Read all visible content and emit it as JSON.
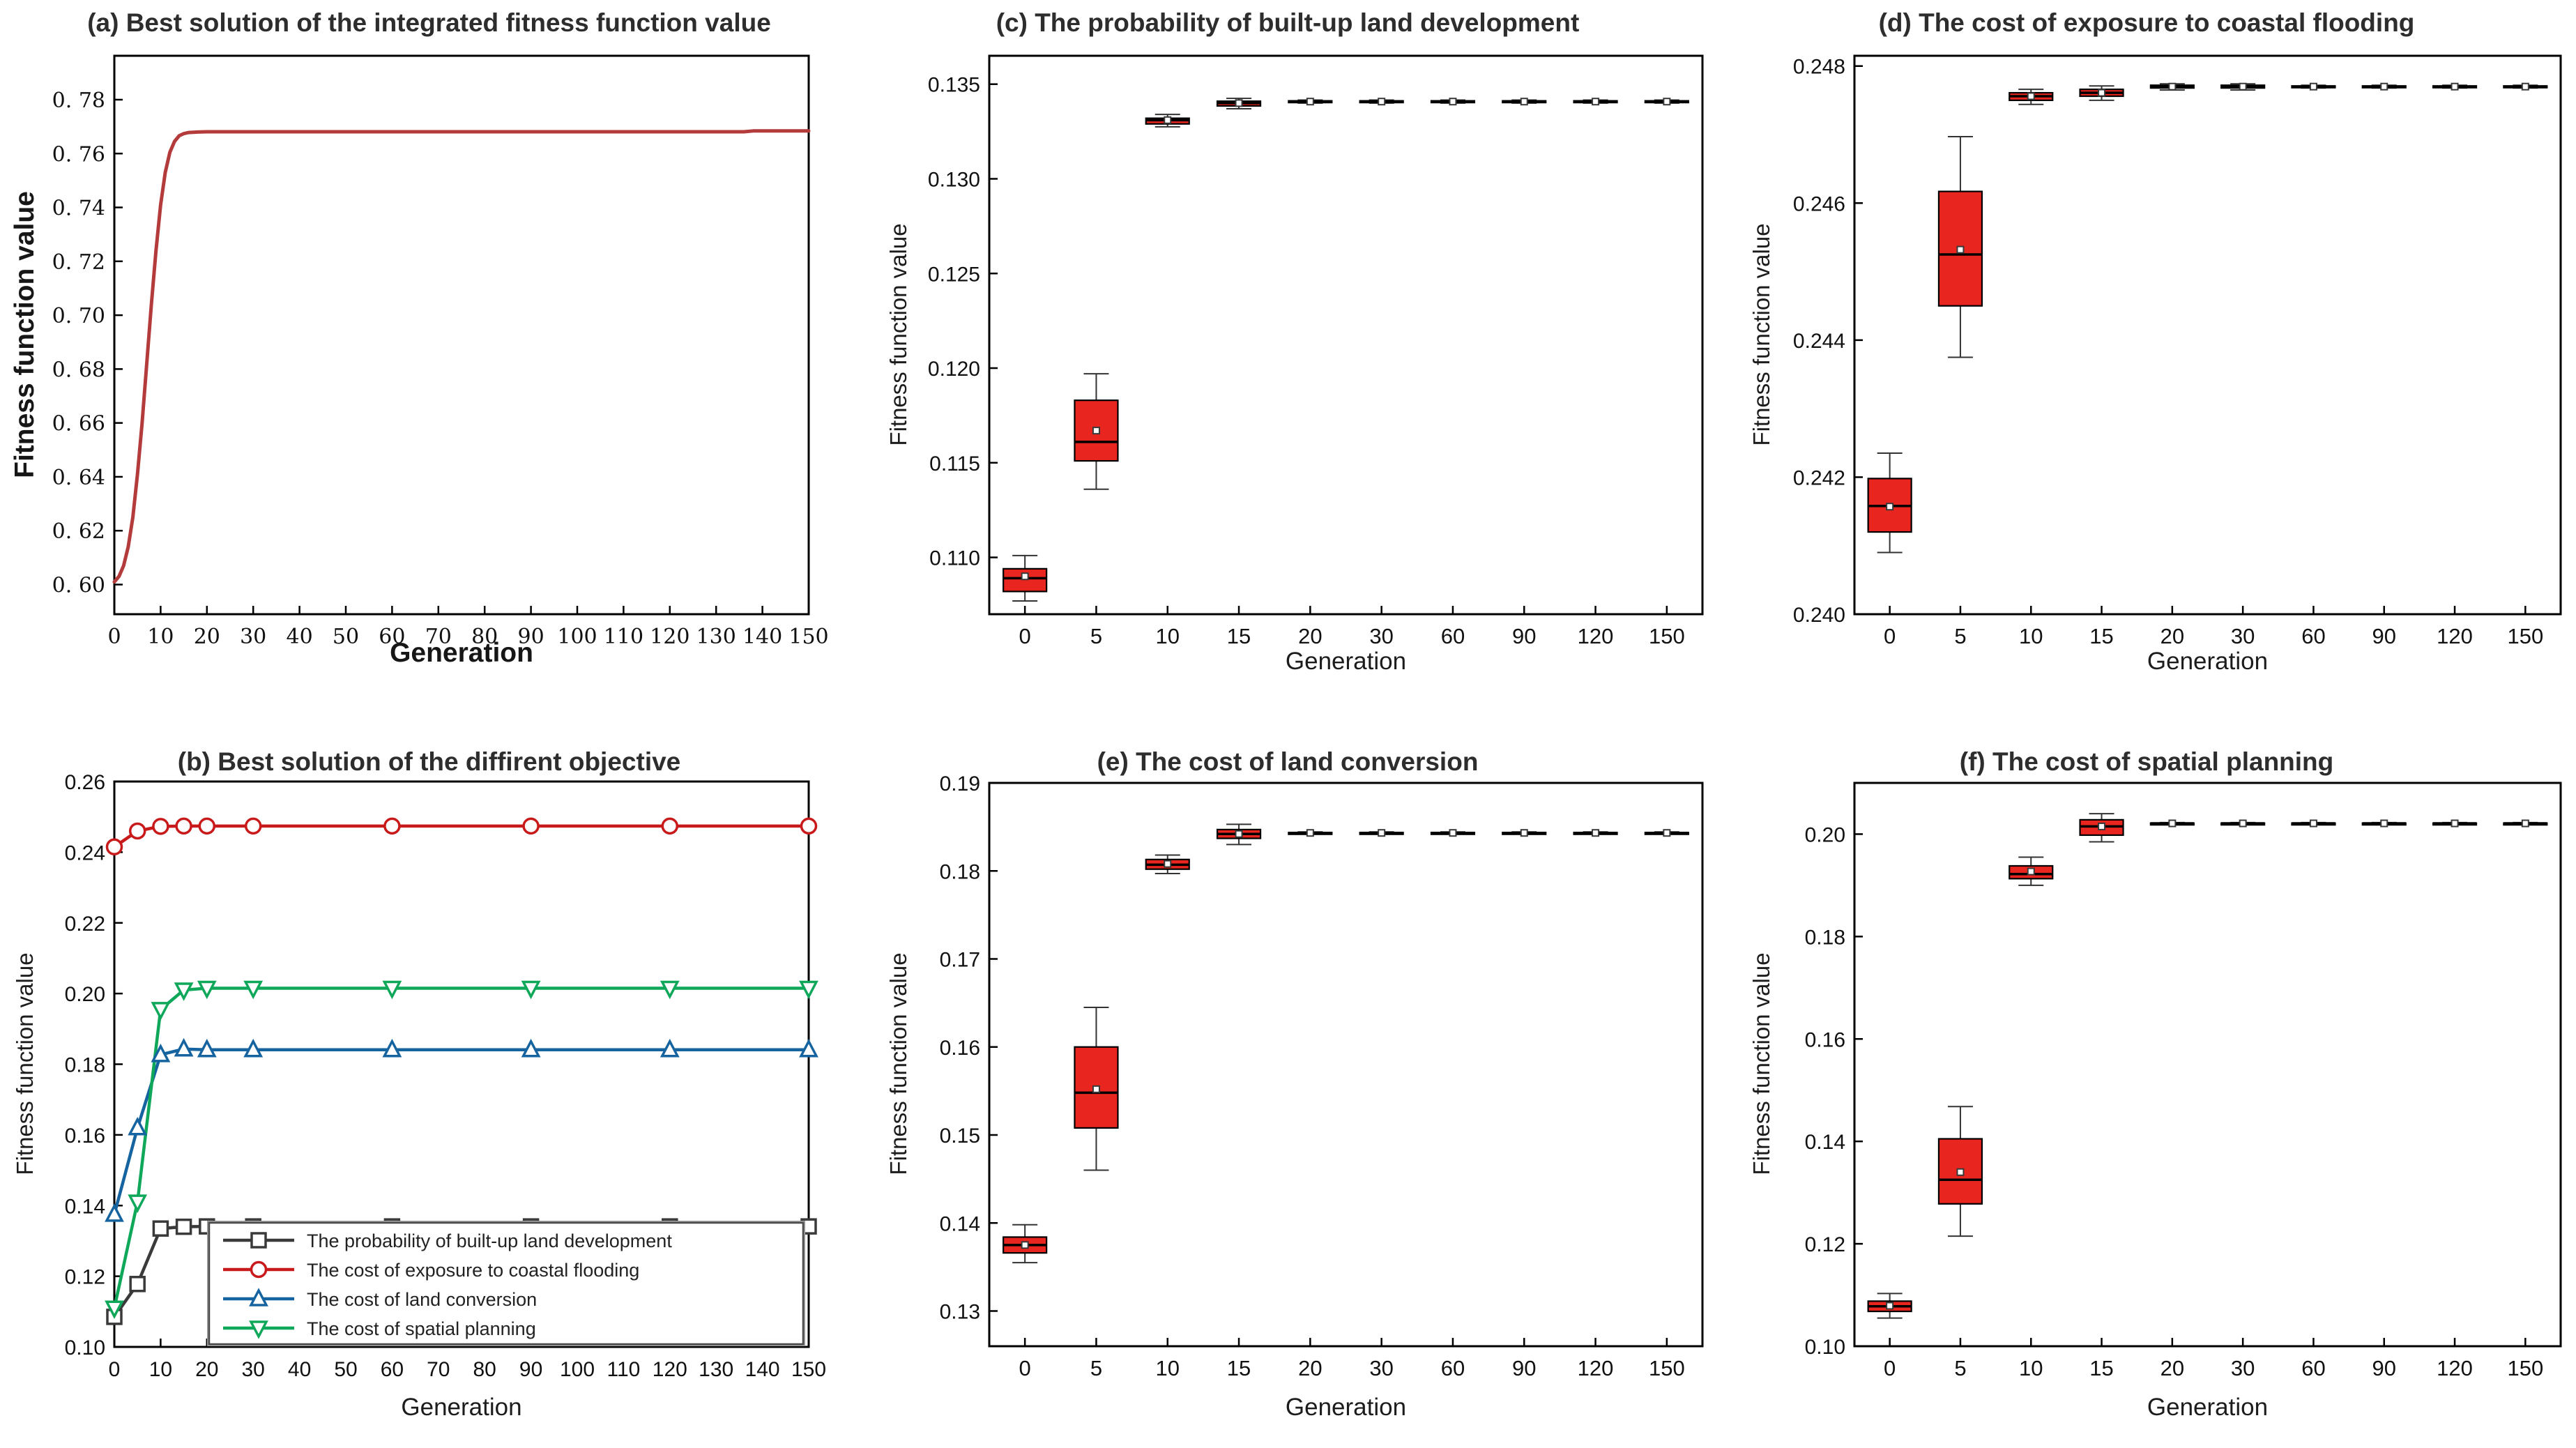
{
  "figure": {
    "background": "#ffffff",
    "rows": 2,
    "cols": 3,
    "axis_color": "#000000",
    "tick_text_color": "#111111",
    "title_color": "#2d2d2d"
  },
  "chart_data": [
    {
      "id": "a",
      "type": "line",
      "title": "(a) Best solution of the integrated fitness function value",
      "xlabel": "Generation",
      "ylabel": "Fitness function value",
      "xlim": [
        0,
        150
      ],
      "ylim": [
        0.589,
        0.7963
      ],
      "xticks": [
        0,
        10,
        20,
        30,
        40,
        50,
        60,
        70,
        80,
        90,
        100,
        110,
        120,
        130,
        140,
        150
      ],
      "yticks": [
        0.6,
        0.62,
        0.64,
        0.66,
        0.68,
        0.7,
        0.72,
        0.74,
        0.76,
        0.78
      ],
      "ytick_labels": [
        "0. 60",
        "0. 62",
        "0. 64",
        "0. 66",
        "0. 68",
        "0. 70",
        "0. 72",
        "0. 74",
        "0. 76",
        "0. 78"
      ],
      "grid": false,
      "line_color": "#b43b3c",
      "points": [
        [
          0,
          0.601
        ],
        [
          1,
          0.603
        ],
        [
          2,
          0.607
        ],
        [
          3,
          0.614
        ],
        [
          4,
          0.625
        ],
        [
          5,
          0.641
        ],
        [
          6,
          0.66
        ],
        [
          7,
          0.682
        ],
        [
          8,
          0.704
        ],
        [
          9,
          0.724
        ],
        [
          10,
          0.741
        ],
        [
          11,
          0.753
        ],
        [
          12,
          0.7605
        ],
        [
          13,
          0.7645
        ],
        [
          14,
          0.7666
        ],
        [
          15,
          0.7674
        ],
        [
          16,
          0.7678
        ],
        [
          18,
          0.768
        ],
        [
          20,
          0.7681
        ],
        [
          40,
          0.7681
        ],
        [
          80,
          0.7681
        ],
        [
          120,
          0.7681
        ],
        [
          136,
          0.7681
        ],
        [
          138,
          0.7684
        ],
        [
          150,
          0.7684
        ]
      ]
    },
    {
      "id": "b",
      "type": "multiline",
      "title": "(b) Best solution of the diffirent objective",
      "xlabel": "Generation",
      "ylabel": "Fitness function value",
      "xlim": [
        0,
        150
      ],
      "ylim": [
        0.1,
        0.26
      ],
      "xticks": [
        0,
        10,
        20,
        30,
        40,
        50,
        60,
        70,
        80,
        90,
        100,
        110,
        120,
        130,
        140,
        150
      ],
      "yticks": [
        0.1,
        0.12,
        0.14,
        0.16,
        0.18,
        0.2,
        0.22,
        0.24,
        0.26
      ],
      "ytick_labels": [
        "0.10",
        "0.12",
        "0.14",
        "0.16",
        "0.18",
        "0.20",
        "0.22",
        "0.24",
        "0.26"
      ],
      "grid": false,
      "legend_position": "lower-right-inside",
      "x": [
        0,
        5,
        10,
        15,
        20,
        30,
        60,
        90,
        120,
        150
      ],
      "series": [
        {
          "name": "The probability of built-up land development",
          "color": "#3a3a3a",
          "marker": "square",
          "values": [
            0.1085,
            0.1178,
            0.1335,
            0.134,
            0.1341,
            0.1341,
            0.1341,
            0.1341,
            0.1341,
            0.1341
          ]
        },
        {
          "name": "The cost of exposure to coastal flooding",
          "color": "#c81a1a",
          "marker": "circle",
          "values": [
            0.2415,
            0.246,
            0.2473,
            0.2474,
            0.2474,
            0.2474,
            0.2474,
            0.2474,
            0.2474,
            0.2474
          ]
        },
        {
          "name": "The cost of land conversion",
          "color": "#15639f",
          "marker": "triangle-up",
          "values": [
            0.1375,
            0.162,
            0.1827,
            0.1843,
            0.1841,
            0.1841,
            0.1841,
            0.1841,
            0.1841,
            0.1841
          ]
        },
        {
          "name": "The cost of spatial planning",
          "color": "#0fa85a",
          "marker": "triangle-down",
          "values": [
            0.111,
            0.141,
            0.1955,
            0.201,
            0.2015,
            0.2015,
            0.2015,
            0.2015,
            0.2015,
            0.2015
          ]
        }
      ]
    },
    {
      "id": "c",
      "type": "box",
      "title": "(c) The probability of built-up land development",
      "xlabel": "Generation",
      "ylabel": "Fitness function value",
      "categories": [
        "0",
        "5",
        "10",
        "15",
        "20",
        "30",
        "60",
        "90",
        "120",
        "150"
      ],
      "ylim": [
        0.107,
        0.1365
      ],
      "yticks": [
        0.11,
        0.115,
        0.12,
        0.125,
        0.13,
        0.135
      ],
      "ytick_labels": [
        "0.110",
        "0.115",
        "0.120",
        "0.125",
        "0.130",
        "0.135"
      ],
      "grid": false,
      "box_color": "#e8251f",
      "boxes": [
        {
          "lo": 0.1077,
          "q1": 0.1082,
          "med": 0.1089,
          "q3": 0.1094,
          "hi": 0.1101,
          "mean": 0.109
        },
        {
          "lo": 0.1136,
          "q1": 0.1151,
          "med": 0.1161,
          "q3": 0.1183,
          "hi": 0.1197,
          "mean": 0.1167
        },
        {
          "lo": 0.13275,
          "q1": 0.1329,
          "med": 0.1331,
          "q3": 0.1332,
          "hi": 0.1334,
          "mean": 0.1331
        },
        {
          "lo": 0.1337,
          "q1": 0.13385,
          "med": 0.134,
          "q3": 0.1341,
          "hi": 0.13425,
          "mean": 0.134
        },
        {
          "lo": 0.134,
          "q1": 0.13405,
          "med": 0.13408,
          "q3": 0.13412,
          "hi": 0.13416,
          "mean": 0.13408
        },
        {
          "lo": 0.134,
          "q1": 0.13405,
          "med": 0.13408,
          "q3": 0.13412,
          "hi": 0.13416,
          "mean": 0.13408
        },
        {
          "lo": 0.134,
          "q1": 0.13405,
          "med": 0.13408,
          "q3": 0.13412,
          "hi": 0.13416,
          "mean": 0.13408
        },
        {
          "lo": 0.134,
          "q1": 0.13405,
          "med": 0.13408,
          "q3": 0.13412,
          "hi": 0.13416,
          "mean": 0.13408
        },
        {
          "lo": 0.134,
          "q1": 0.13405,
          "med": 0.13408,
          "q3": 0.13412,
          "hi": 0.13416,
          "mean": 0.13408
        },
        {
          "lo": 0.134,
          "q1": 0.13405,
          "med": 0.13408,
          "q3": 0.13412,
          "hi": 0.13416,
          "mean": 0.13408
        }
      ]
    },
    {
      "id": "d",
      "type": "box",
      "title": "(d) The cost of exposure to coastal flooding",
      "xlabel": "Generation",
      "ylabel": "Fitness function value",
      "categories": [
        "0",
        "5",
        "10",
        "15",
        "20",
        "30",
        "60",
        "90",
        "120",
        "150"
      ],
      "ylim": [
        0.24,
        0.24815
      ],
      "yticks": [
        0.24,
        0.242,
        0.244,
        0.246,
        0.248
      ],
      "ytick_labels": [
        "0.240",
        "0.242",
        "0.244",
        "0.246",
        "0.248"
      ],
      "grid": false,
      "box_color": "#e8251f",
      "boxes": [
        {
          "lo": 0.2409,
          "q1": 0.2412,
          "med": 0.24158,
          "q3": 0.24198,
          "hi": 0.24235,
          "mean": 0.24157
        },
        {
          "lo": 0.24375,
          "q1": 0.2445,
          "med": 0.24525,
          "q3": 0.24617,
          "hi": 0.24697,
          "mean": 0.24532
        },
        {
          "lo": 0.24744,
          "q1": 0.2475,
          "med": 0.24756,
          "q3": 0.24761,
          "hi": 0.24766,
          "mean": 0.24756
        },
        {
          "lo": 0.2475,
          "q1": 0.24756,
          "med": 0.24761,
          "q3": 0.24766,
          "hi": 0.24771,
          "mean": 0.24761
        },
        {
          "lo": 0.24765,
          "q1": 0.24768,
          "med": 0.2477,
          "q3": 0.24772,
          "hi": 0.24774,
          "mean": 0.2477
        },
        {
          "lo": 0.24765,
          "q1": 0.24768,
          "med": 0.2477,
          "q3": 0.24772,
          "hi": 0.24774,
          "mean": 0.2477
        },
        {
          "lo": 0.24768,
          "q1": 0.24769,
          "med": 0.2477,
          "q3": 0.24771,
          "hi": 0.24772,
          "mean": 0.2477
        },
        {
          "lo": 0.24768,
          "q1": 0.24769,
          "med": 0.2477,
          "q3": 0.24771,
          "hi": 0.24772,
          "mean": 0.2477
        },
        {
          "lo": 0.24768,
          "q1": 0.24769,
          "med": 0.2477,
          "q3": 0.24771,
          "hi": 0.24772,
          "mean": 0.2477
        },
        {
          "lo": 0.24768,
          "q1": 0.24769,
          "med": 0.2477,
          "q3": 0.24771,
          "hi": 0.24772,
          "mean": 0.2477
        }
      ]
    },
    {
      "id": "e",
      "type": "box",
      "title": "(e) The cost of land conversion",
      "xlabel": "Generation",
      "ylabel": "Fitness function value",
      "categories": [
        "0",
        "5",
        "10",
        "15",
        "20",
        "30",
        "60",
        "90",
        "120",
        "150"
      ],
      "ylim": [
        0.126,
        0.19
      ],
      "yticks": [
        0.13,
        0.14,
        0.15,
        0.16,
        0.17,
        0.18,
        0.19
      ],
      "ytick_labels": [
        "0.13",
        "0.14",
        "0.15",
        "0.16",
        "0.17",
        "0.18",
        "0.19"
      ],
      "grid": false,
      "box_color": "#e8251f",
      "boxes": [
        {
          "lo": 0.1355,
          "q1": 0.1366,
          "med": 0.1375,
          "q3": 0.1384,
          "hi": 0.1398,
          "mean": 0.1375
        },
        {
          "lo": 0.146,
          "q1": 0.1508,
          "med": 0.1548,
          "q3": 0.16,
          "hi": 0.1645,
          "mean": 0.1552
        },
        {
          "lo": 0.1797,
          "q1": 0.1802,
          "med": 0.1807,
          "q3": 0.1813,
          "hi": 0.1818,
          "mean": 0.1808
        },
        {
          "lo": 0.183,
          "q1": 0.1837,
          "med": 0.1842,
          "q3": 0.1847,
          "hi": 0.1853,
          "mean": 0.1842
        },
        {
          "lo": 0.1842,
          "q1": 0.18428,
          "med": 0.18432,
          "q3": 0.18436,
          "hi": 0.18444,
          "mean": 0.18432
        },
        {
          "lo": 0.1842,
          "q1": 0.18428,
          "med": 0.18432,
          "q3": 0.18436,
          "hi": 0.18444,
          "mean": 0.18432
        },
        {
          "lo": 0.1842,
          "q1": 0.18428,
          "med": 0.18432,
          "q3": 0.18436,
          "hi": 0.18444,
          "mean": 0.18432
        },
        {
          "lo": 0.1842,
          "q1": 0.18428,
          "med": 0.18432,
          "q3": 0.18436,
          "hi": 0.18444,
          "mean": 0.18432
        },
        {
          "lo": 0.1842,
          "q1": 0.18428,
          "med": 0.18432,
          "q3": 0.18436,
          "hi": 0.18444,
          "mean": 0.18432
        },
        {
          "lo": 0.1842,
          "q1": 0.18428,
          "med": 0.18432,
          "q3": 0.18436,
          "hi": 0.18444,
          "mean": 0.18432
        }
      ]
    },
    {
      "id": "f",
      "type": "box",
      "title": "(f) The cost of spatial planning",
      "xlabel": "Generation",
      "ylabel": "Fitness function value",
      "categories": [
        "0",
        "5",
        "10",
        "15",
        "20",
        "30",
        "60",
        "90",
        "120",
        "150"
      ],
      "ylim": [
        0.1,
        0.21
      ],
      "yticks": [
        0.1,
        0.12,
        0.14,
        0.16,
        0.18,
        0.2
      ],
      "ytick_labels": [
        "0.10",
        "0.12",
        "0.14",
        "0.16",
        "0.18",
        "0.20"
      ],
      "grid": false,
      "box_color": "#e8251f",
      "boxes": [
        {
          "lo": 0.1055,
          "q1": 0.1068,
          "med": 0.1078,
          "q3": 0.1088,
          "hi": 0.1103,
          "mean": 0.1079
        },
        {
          "lo": 0.1215,
          "q1": 0.1278,
          "med": 0.1325,
          "q3": 0.1405,
          "hi": 0.1468,
          "mean": 0.134
        },
        {
          "lo": 0.19,
          "q1": 0.1913,
          "med": 0.1922,
          "q3": 0.1938,
          "hi": 0.1955,
          "mean": 0.1927
        },
        {
          "lo": 0.1985,
          "q1": 0.1998,
          "med": 0.2015,
          "q3": 0.2028,
          "hi": 0.204,
          "mean": 0.2015
        },
        {
          "lo": 0.20195,
          "q1": 0.20205,
          "med": 0.2021,
          "q3": 0.20215,
          "hi": 0.20225,
          "mean": 0.2021
        },
        {
          "lo": 0.20195,
          "q1": 0.20205,
          "med": 0.2021,
          "q3": 0.20215,
          "hi": 0.20225,
          "mean": 0.2021
        },
        {
          "lo": 0.20195,
          "q1": 0.20205,
          "med": 0.2021,
          "q3": 0.20215,
          "hi": 0.20225,
          "mean": 0.2021
        },
        {
          "lo": 0.20195,
          "q1": 0.20205,
          "med": 0.2021,
          "q3": 0.20215,
          "hi": 0.20225,
          "mean": 0.2021
        },
        {
          "lo": 0.20195,
          "q1": 0.20205,
          "med": 0.2021,
          "q3": 0.20215,
          "hi": 0.20225,
          "mean": 0.2021
        },
        {
          "lo": 0.20195,
          "q1": 0.20205,
          "med": 0.2021,
          "q3": 0.20215,
          "hi": 0.20225,
          "mean": 0.2021
        }
      ]
    }
  ]
}
